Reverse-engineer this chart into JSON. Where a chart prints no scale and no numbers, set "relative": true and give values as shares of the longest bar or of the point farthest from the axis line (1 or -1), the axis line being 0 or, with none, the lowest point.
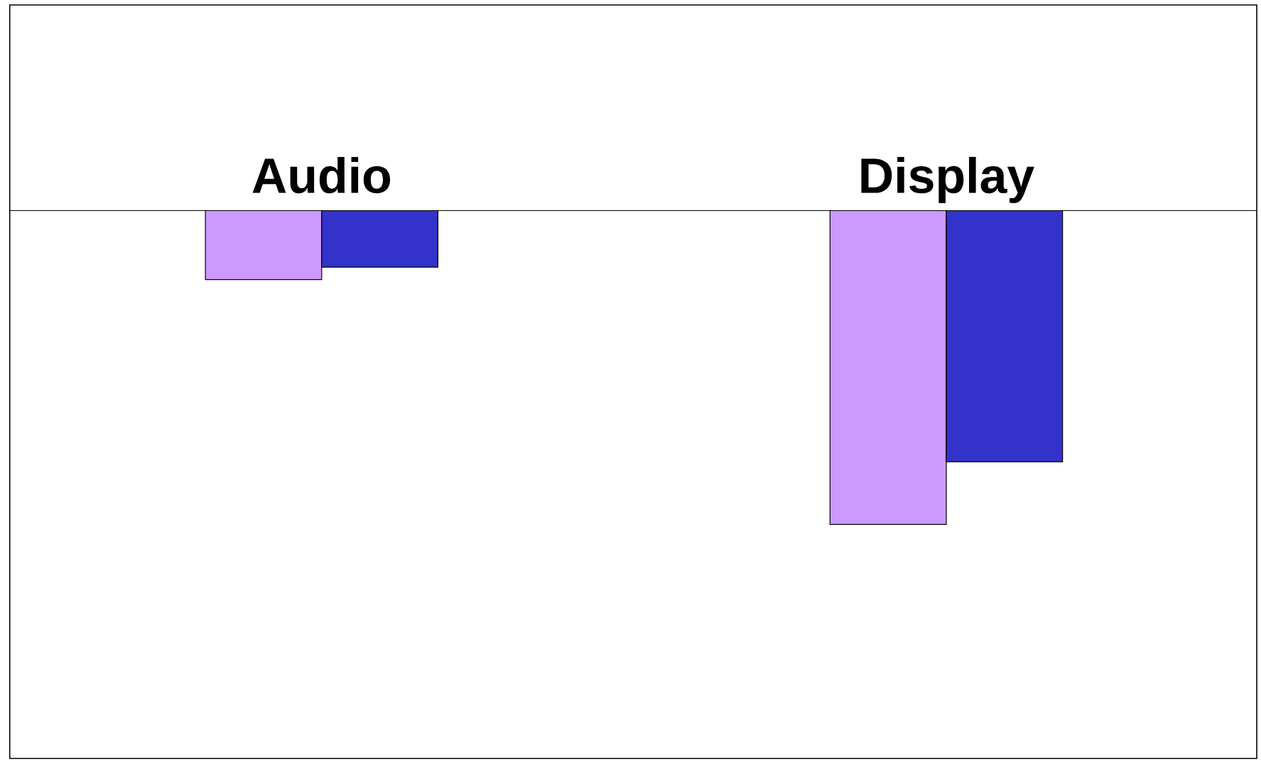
{
  "chart_data": {
    "type": "bar",
    "relative": true,
    "categories": [
      "Audio",
      "Display"
    ],
    "series": [
      {
        "color": "#cc99ff",
        "values": [
          -0.22,
          -1
        ]
      },
      {
        "color": "#3333cc",
        "values": [
          -0.18,
          -0.8
        ]
      }
    ]
  }
}
